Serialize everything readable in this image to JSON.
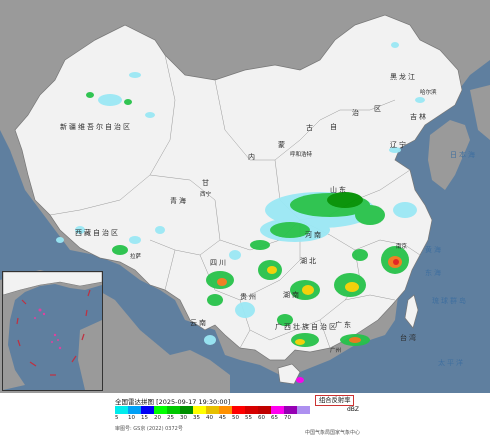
{
  "map": {
    "regions": {
      "xinjiang": "新疆维吾尔自治区",
      "tibet": "西藏自治区",
      "qinghai": "青海",
      "gansu": "甘",
      "inner_mongolia_a": "内",
      "inner_mongolia_b": "蒙",
      "inner_mongolia_c": "古",
      "inner_mongolia_d": "自",
      "inner_mongolia_e": "治",
      "inner_mongolia_f": "区",
      "heilongjiang": "黑龙江",
      "jilin": "吉林",
      "liaoning": "辽宁",
      "hunan": "湖南",
      "guangxi": "广西壮族自治区",
      "guangdong": "广东",
      "sichuan": "四川",
      "yunnan": "云南",
      "guizhou": "贵州",
      "taiwan": "台湾",
      "hubei": "湖北",
      "henan": "河南",
      "shandong": "山东"
    },
    "seas": {
      "yellow_sea": "黄海",
      "east_sea": "东海",
      "pacific": "太平洋",
      "ryukyu": "琉球群岛",
      "japan_sea": "日本海"
    },
    "cities": {
      "harbin": "哈尔滨",
      "hohhot": "呼和浩特",
      "xining": "西宁",
      "nanjing": "南京",
      "guangzhou": "广州",
      "lhasa": "拉萨"
    }
  },
  "legend": {
    "title": "全国雷达拼图 [2025-09-17 19:30:00]",
    "product": "组合反射率",
    "unit": "dBZ",
    "ticks": [
      "5",
      "10",
      "15",
      "20",
      "25",
      "30",
      "35",
      "40",
      "45",
      "50",
      "55",
      "60",
      "65",
      "70"
    ],
    "colors": [
      "#00ecec",
      "#01a0f6",
      "#0000f6",
      "#00ff00",
      "#00c800",
      "#009000",
      "#ffff00",
      "#e7c000",
      "#ff9000",
      "#ff0000",
      "#d60000",
      "#c00000",
      "#ff00f0",
      "#9600b4",
      "#ad90f0"
    ],
    "approval": "审图号: GS京 (2022) 0372号",
    "credit": "中国气象局国家气象中心"
  },
  "radar_echo": {
    "colors": {
      "light": "#9be8f5",
      "medium": "#27c24a",
      "strong": "#f1d000",
      "heavy": "#ef7a1a",
      "severe": "#e21d1d"
    }
  }
}
